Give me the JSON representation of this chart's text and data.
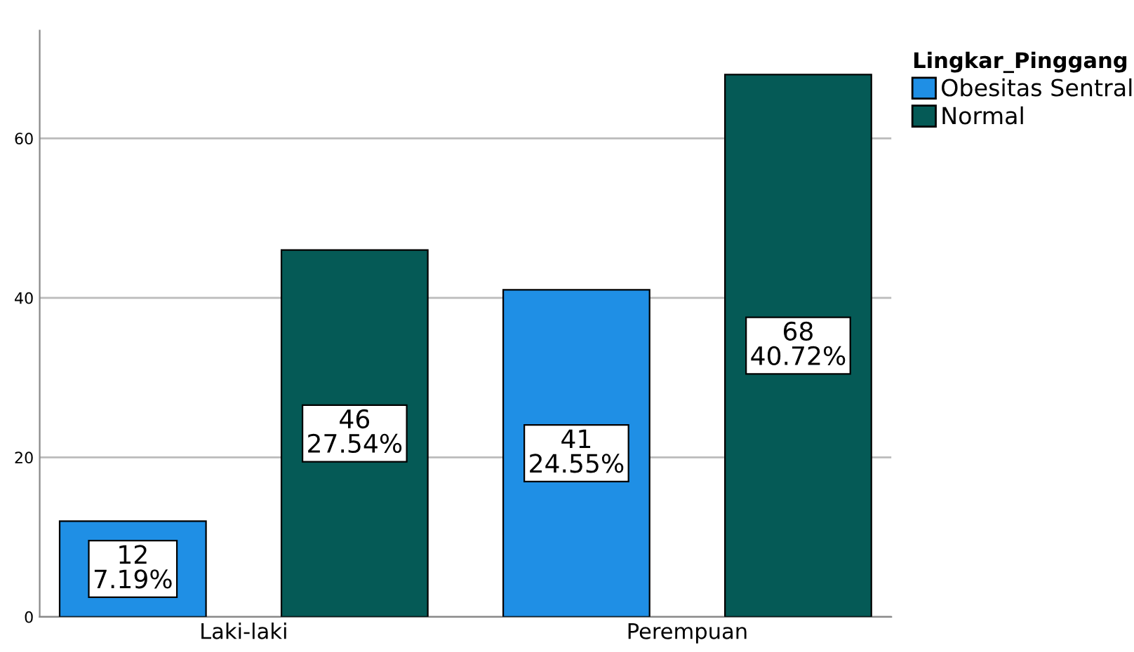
{
  "chart_data": {
    "type": "bar",
    "categories": [
      "Laki-laki",
      "Perempuan"
    ],
    "legend_title": "Lingkar_Pinggang",
    "series": [
      {
        "name": "Obesitas Sentral",
        "color": "#1f8fe5",
        "values": [
          12,
          41
        ],
        "value_labels": [
          "12\n7.19%",
          "41\n24.55%"
        ]
      },
      {
        "name": "Normal",
        "color": "#055a56",
        "values": [
          46,
          68
        ],
        "value_labels": [
          "46\n27.54%",
          "68\n40.72%"
        ]
      }
    ],
    "ylim": [
      0,
      73.5
    ],
    "yticks": [
      0,
      20,
      40,
      60
    ],
    "grid": "y",
    "legend": "top right"
  }
}
